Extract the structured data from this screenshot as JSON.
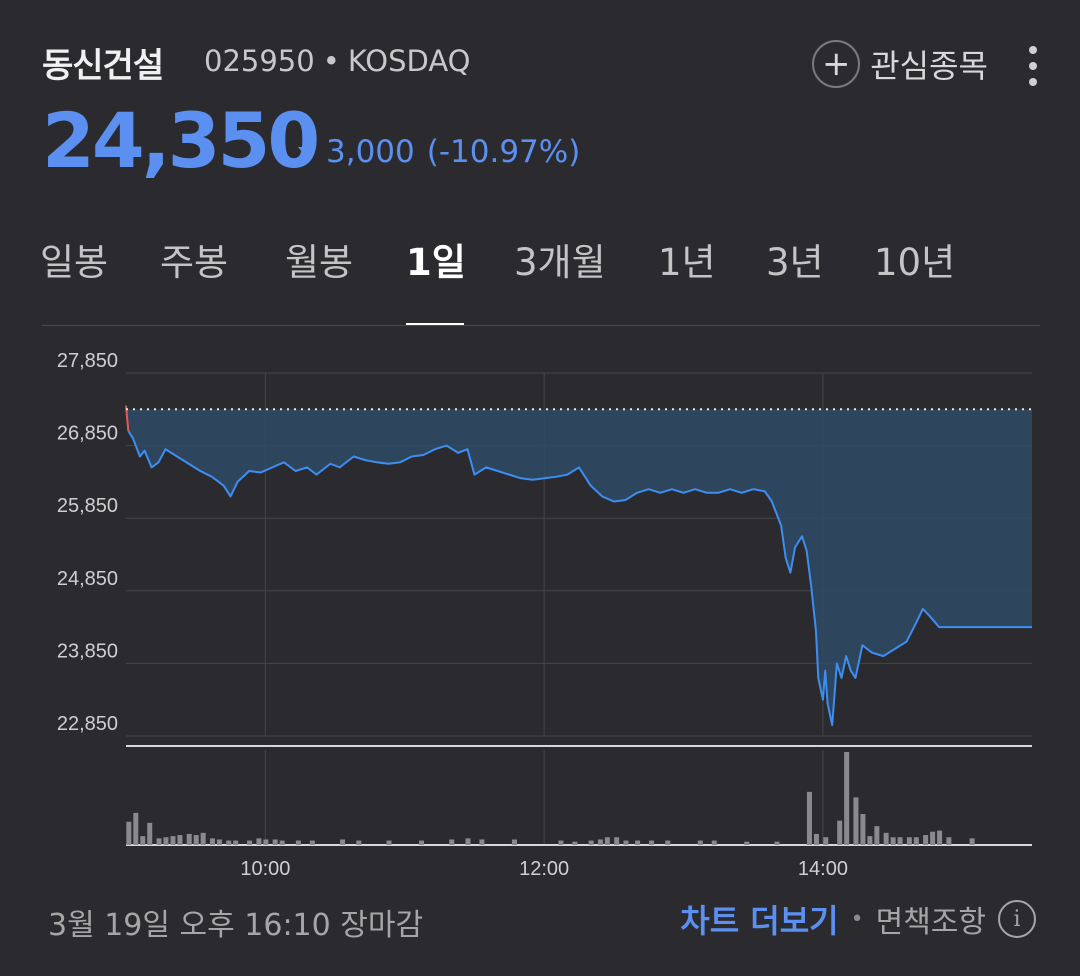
{
  "stock": {
    "name": "동신건설",
    "code": "025950",
    "market": "KOSDAQ",
    "price": "24,350",
    "change": "3,000",
    "change_pct": "(-10.97%)",
    "direction": "down",
    "color_down": "#5b8ff0",
    "color_up": "#e05a5a"
  },
  "header": {
    "watch_label": "관심종목",
    "watch_icon": "plus-icon",
    "more_icon": "more-vertical-icon"
  },
  "tabs": [
    {
      "label": "일봉",
      "active": false
    },
    {
      "label": "주봉",
      "active": false
    },
    {
      "label": "월봉",
      "active": false
    },
    {
      "label": "1일",
      "active": true
    },
    {
      "label": "3개월",
      "active": false
    },
    {
      "label": "1년",
      "active": false
    },
    {
      "label": "3년",
      "active": false
    },
    {
      "label": "10년",
      "active": false
    }
  ],
  "chart_data": {
    "type": "area",
    "title": "",
    "xlabel": "",
    "ylabel": "",
    "y_ticks": [
      "27,850",
      "26,850",
      "25,850",
      "24,850",
      "23,850",
      "22,850"
    ],
    "ylim": [
      22850,
      27850
    ],
    "x_ticks": [
      "10:00",
      "12:00",
      "14:00"
    ],
    "xlim": [
      "09:00",
      "15:30"
    ],
    "previous_close": 27350,
    "grid": true,
    "price_series": [
      [
        "09:00",
        27400
      ],
      [
        "09:01",
        27050
      ],
      [
        "09:03",
        26950
      ],
      [
        "09:06",
        26700
      ],
      [
        "09:08",
        26780
      ],
      [
        "09:11",
        26550
      ],
      [
        "09:14",
        26620
      ],
      [
        "09:17",
        26800
      ],
      [
        "09:22",
        26700
      ],
      [
        "09:27",
        26600
      ],
      [
        "09:32",
        26500
      ],
      [
        "09:37",
        26420
      ],
      [
        "09:42",
        26300
      ],
      [
        "09:45",
        26150
      ],
      [
        "09:48",
        26350
      ],
      [
        "09:53",
        26500
      ],
      [
        "09:58",
        26480
      ],
      [
        "10:03",
        26550
      ],
      [
        "10:08",
        26620
      ],
      [
        "10:13",
        26500
      ],
      [
        "10:18",
        26550
      ],
      [
        "10:22",
        26450
      ],
      [
        "10:28",
        26600
      ],
      [
        "10:32",
        26550
      ],
      [
        "10:38",
        26700
      ],
      [
        "10:43",
        26650
      ],
      [
        "10:48",
        26620
      ],
      [
        "10:53",
        26600
      ],
      [
        "10:58",
        26620
      ],
      [
        "11:03",
        26700
      ],
      [
        "11:08",
        26720
      ],
      [
        "11:13",
        26800
      ],
      [
        "11:18",
        26850
      ],
      [
        "11:23",
        26750
      ],
      [
        "11:27",
        26800
      ],
      [
        "11:30",
        26450
      ],
      [
        "11:35",
        26550
      ],
      [
        "11:40",
        26500
      ],
      [
        "11:45",
        26450
      ],
      [
        "11:50",
        26400
      ],
      [
        "11:55",
        26380
      ],
      [
        "12:00",
        26400
      ],
      [
        "12:05",
        26420
      ],
      [
        "12:10",
        26450
      ],
      [
        "12:15",
        26550
      ],
      [
        "12:20",
        26300
      ],
      [
        "12:25",
        26150
      ],
      [
        "12:30",
        26080
      ],
      [
        "12:35",
        26100
      ],
      [
        "12:40",
        26200
      ],
      [
        "12:45",
        26250
      ],
      [
        "12:50",
        26200
      ],
      [
        "12:55",
        26250
      ],
      [
        "13:00",
        26200
      ],
      [
        "13:05",
        26250
      ],
      [
        "13:10",
        26200
      ],
      [
        "13:15",
        26200
      ],
      [
        "13:20",
        26250
      ],
      [
        "13:25",
        26200
      ],
      [
        "13:30",
        26250
      ],
      [
        "13:35",
        26220
      ],
      [
        "13:38",
        26080
      ],
      [
        "13:42",
        25750
      ],
      [
        "13:44",
        25300
      ],
      [
        "13:46",
        25100
      ],
      [
        "13:48",
        25450
      ],
      [
        "13:51",
        25600
      ],
      [
        "13:53",
        25400
      ],
      [
        "13:55",
        24900
      ],
      [
        "13:57",
        24300
      ],
      [
        "13:58",
        23650
      ],
      [
        "14:00",
        23350
      ],
      [
        "14:01",
        23750
      ],
      [
        "14:02",
        23300
      ],
      [
        "14:04",
        23000
      ],
      [
        "14:06",
        23850
      ],
      [
        "14:08",
        23650
      ],
      [
        "14:10",
        23950
      ],
      [
        "14:12",
        23750
      ],
      [
        "14:14",
        23650
      ],
      [
        "14:17",
        24100
      ],
      [
        "14:21",
        24000
      ],
      [
        "14:26",
        23950
      ],
      [
        "14:31",
        24050
      ],
      [
        "14:36",
        24150
      ],
      [
        "14:40",
        24400
      ],
      [
        "14:43",
        24600
      ],
      [
        "14:46",
        24500
      ],
      [
        "14:50",
        24350
      ],
      [
        "14:55",
        24350
      ],
      [
        "15:00",
        24350
      ],
      [
        "15:10",
        24350
      ],
      [
        "15:20",
        24350
      ],
      [
        "15:30",
        24350
      ]
    ],
    "volume_series": [
      [
        "09:01",
        21
      ],
      [
        "09:04",
        29
      ],
      [
        "09:07",
        8
      ],
      [
        "09:10",
        20
      ],
      [
        "09:14",
        6
      ],
      [
        "09:17",
        7
      ],
      [
        "09:20",
        8
      ],
      [
        "09:23",
        9
      ],
      [
        "09:27",
        10
      ],
      [
        "09:30",
        9
      ],
      [
        "09:33",
        11
      ],
      [
        "09:37",
        6
      ],
      [
        "09:40",
        5
      ],
      [
        "09:44",
        4
      ],
      [
        "09:47",
        4
      ],
      [
        "09:53",
        4
      ],
      [
        "09:57",
        6
      ],
      [
        "10:00",
        5
      ],
      [
        "10:04",
        5
      ],
      [
        "10:07",
        4
      ],
      [
        "10:14",
        4
      ],
      [
        "10:20",
        4
      ],
      [
        "10:33",
        5
      ],
      [
        "10:40",
        4
      ],
      [
        "10:53",
        4
      ],
      [
        "11:07",
        4
      ],
      [
        "11:20",
        5
      ],
      [
        "11:27",
        6
      ],
      [
        "11:33",
        5
      ],
      [
        "11:47",
        5
      ],
      [
        "12:07",
        4
      ],
      [
        "12:13",
        3
      ],
      [
        "12:20",
        4
      ],
      [
        "12:24",
        5
      ],
      [
        "12:27",
        7
      ],
      [
        "12:31",
        7
      ],
      [
        "12:35",
        4
      ],
      [
        "12:40",
        4
      ],
      [
        "12:46",
        4
      ],
      [
        "12:53",
        4
      ],
      [
        "13:07",
        4
      ],
      [
        "13:13",
        4
      ],
      [
        "13:27",
        3
      ],
      [
        "13:40",
        3
      ],
      [
        "13:54",
        48
      ],
      [
        "13:57",
        10
      ],
      [
        "14:01",
        7
      ],
      [
        "14:07",
        22
      ],
      [
        "14:10",
        84
      ],
      [
        "14:14",
        43
      ],
      [
        "14:17",
        28
      ],
      [
        "14:20",
        8
      ],
      [
        "14:23",
        17
      ],
      [
        "14:27",
        11
      ],
      [
        "14:30",
        7
      ],
      [
        "14:33",
        7
      ],
      [
        "14:37",
        7
      ],
      [
        "14:40",
        7
      ],
      [
        "14:44",
        9
      ],
      [
        "14:47",
        12
      ],
      [
        "14:50",
        13
      ],
      [
        "14:54",
        7
      ],
      [
        "15:04",
        6
      ]
    ]
  },
  "footer": {
    "market_status": "3월 19일 오후 16:10 장마감",
    "more_chart_label": "차트 더보기",
    "separator": "•",
    "disclaimer_label": "면책조항",
    "info_icon": "info-icon"
  }
}
